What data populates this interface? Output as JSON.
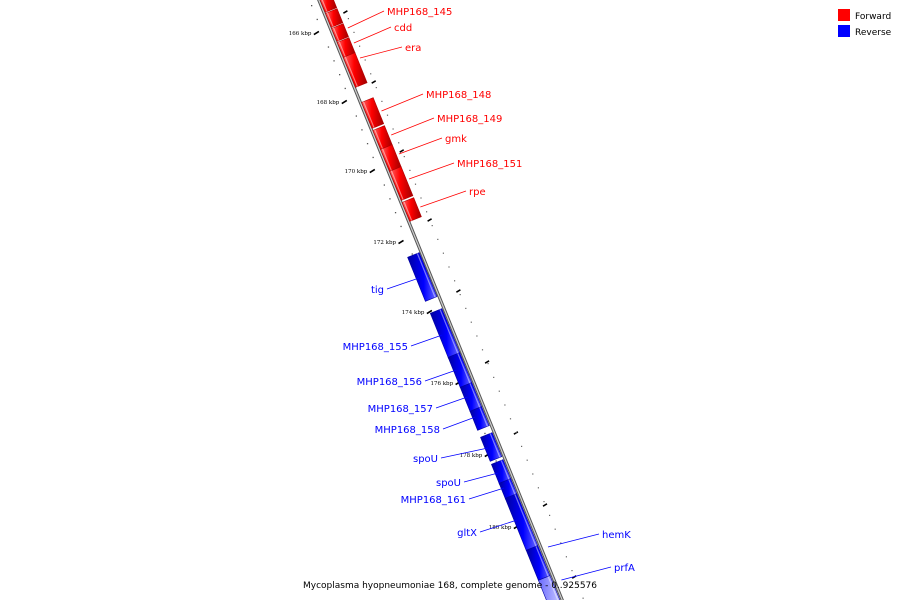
{
  "caption": "Mycoplasma hyopneumoniae 168, complete genome - 0..925576",
  "legend": [
    {
      "label": "Forward",
      "color": "#ff0000"
    },
    {
      "label": "Reverse",
      "color": "#0000ff"
    }
  ],
  "colors": {
    "forward": "#ff0000",
    "reverse": "#0000ff",
    "backbone": "#808080"
  },
  "ticks": [
    "166 kbp",
    "168 kbp",
    "170 kbp",
    "172 kbp",
    "174 kbp",
    "176 kbp",
    "178 kbp",
    "180 kbp"
  ],
  "genes": [
    {
      "name": "MHP168_145",
      "strand": "forward"
    },
    {
      "name": "cdd",
      "strand": "forward"
    },
    {
      "name": "era",
      "strand": "forward"
    },
    {
      "name": "MHP168_148",
      "strand": "forward"
    },
    {
      "name": "MHP168_149",
      "strand": "forward"
    },
    {
      "name": "gmk",
      "strand": "forward"
    },
    {
      "name": "MHP168_151",
      "strand": "forward"
    },
    {
      "name": "rpe",
      "strand": "forward"
    },
    {
      "name": "tig",
      "strand": "reverse"
    },
    {
      "name": "MHP168_155",
      "strand": "reverse"
    },
    {
      "name": "MHP168_156",
      "strand": "reverse"
    },
    {
      "name": "MHP168_157",
      "strand": "reverse"
    },
    {
      "name": "MHP168_158",
      "strand": "reverse"
    },
    {
      "name": "spoU",
      "strand": "reverse"
    },
    {
      "name": "spoU",
      "strand": "reverse"
    },
    {
      "name": "MHP168_161",
      "strand": "reverse"
    },
    {
      "name": "gltX",
      "strand": "reverse"
    },
    {
      "name": "hemK",
      "strand": "reverse"
    },
    {
      "name": "prfA",
      "strand": "reverse"
    }
  ]
}
